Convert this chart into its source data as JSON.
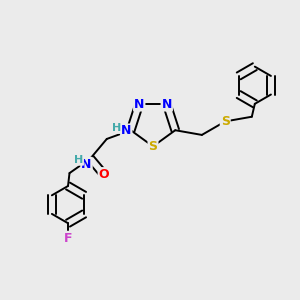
{
  "background_color": "#ebebeb",
  "bond_color": "#000000",
  "atom_colors": {
    "N": "#0000ff",
    "S": "#ccaa00",
    "O": "#ff0000",
    "F": "#cc44cc",
    "H": "#44aaaa",
    "C": "#000000"
  },
  "figsize": [
    3.0,
    3.0
  ],
  "dpi": 100
}
